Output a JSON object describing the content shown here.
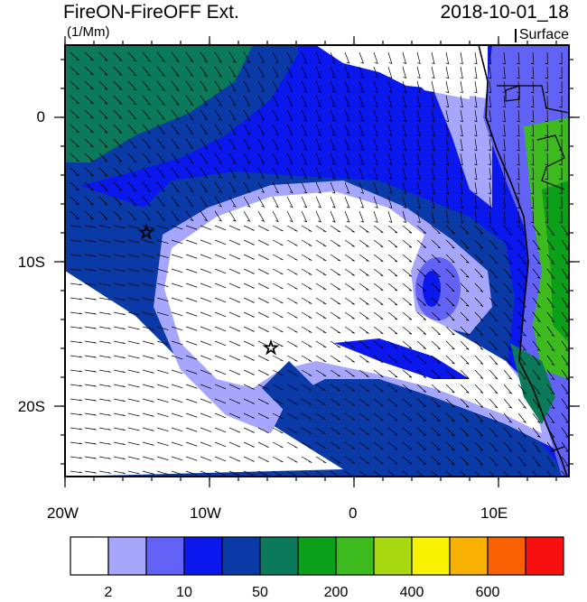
{
  "title": "FireON-FireOFF Ext.",
  "units": "(1/Mm)",
  "datetime": "2018-10-01_18",
  "level": "Surface",
  "lon_labels": [
    "20W",
    "10W",
    "0",
    "10E"
  ],
  "lat_labels": [
    "0",
    "10S",
    "20S"
  ],
  "colorbar": {
    "colors": [
      "#ffffff",
      "#a6a6ff",
      "#6262f6",
      "#0a18ee",
      "#0a3aa8",
      "#0a7a5a",
      "#0aa01a",
      "#3cba1e",
      "#a8d810",
      "#f8f200",
      "#f8b000",
      "#f86000",
      "#f81010"
    ],
    "labels": [
      "2",
      "10",
      "50",
      "200",
      "400",
      "600"
    ]
  },
  "markers": [
    "star",
    "star"
  ]
}
